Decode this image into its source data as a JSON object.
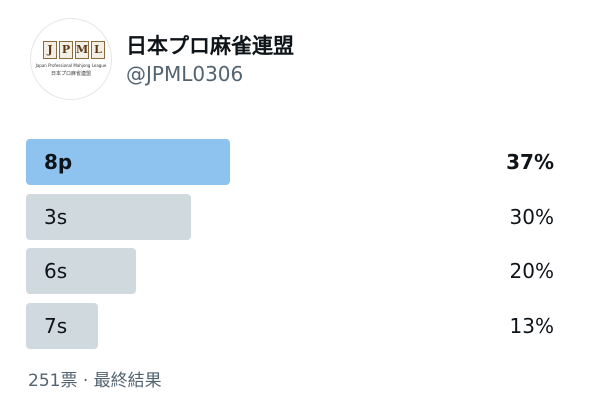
{
  "header": {
    "name": "日本プロ麻雀連盟",
    "handle": "@JPML0306",
    "logo": {
      "letters": [
        "J",
        "P",
        "M",
        "L"
      ],
      "caption": "Japan Professional Mahjong League",
      "subcaption": "日本プロ麻雀連盟"
    }
  },
  "poll": {
    "options": [
      {
        "label": "8p",
        "value": 37,
        "value_label": "37%"
      },
      {
        "label": "3s",
        "value": 30,
        "value_label": "30%"
      },
      {
        "label": "6s",
        "value": 20,
        "value_label": "20%"
      },
      {
        "label": "7s",
        "value": 13,
        "value_label": "13%"
      }
    ],
    "footer": "251票 · 最終結果"
  }
}
